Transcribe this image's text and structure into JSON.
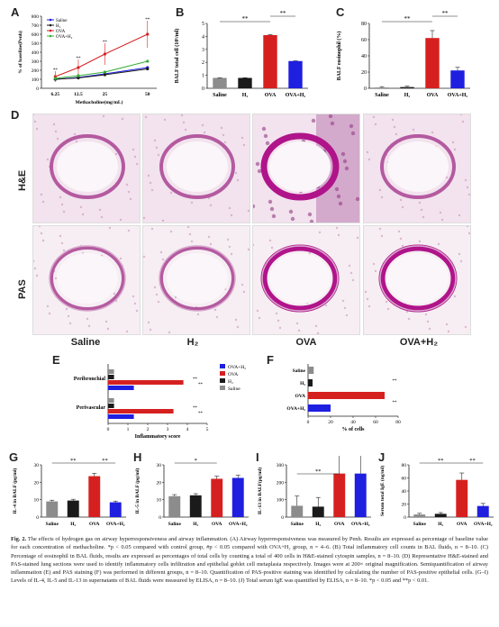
{
  "panels": {
    "A": {
      "label": "A",
      "ylabel": "% of baseline(Penh)",
      "xlabel": "Methacholine(mg/mL)",
      "yticks": [
        "0",
        "100",
        "200",
        "300",
        "400",
        "500",
        "600",
        "700",
        "800"
      ],
      "xticks": [
        "6.25",
        "12.5",
        "25",
        "50"
      ],
      "stars": [
        "**",
        "**",
        "**",
        "**"
      ]
    },
    "B": {
      "label": "B",
      "ylabel": "BALF total cell (10⁵/ml)",
      "yticks": [
        "0",
        "1",
        "2",
        "3",
        "4",
        "5"
      ],
      "categories": [
        "Saline",
        "H₂",
        "OVA",
        "OVA+H₂"
      ],
      "sig": [
        "**",
        "**"
      ]
    },
    "C": {
      "label": "C",
      "ylabel": "BALF eosinophil (%)",
      "yticks": [
        "0",
        "20",
        "40",
        "60",
        "80"
      ],
      "categories": [
        "Saline",
        "H₂",
        "OVA",
        "OVA+H₂"
      ],
      "sig": [
        "**",
        "**"
      ]
    },
    "D": {
      "label": "D",
      "rows": [
        "H&E",
        "PAS"
      ],
      "cols": [
        "Saline",
        "H₂",
        "OVA",
        "OVA+H₂"
      ]
    },
    "E": {
      "label": "E",
      "xlabel": "Inflammatory score",
      "groups": [
        "Peribronchial",
        "Perivascular"
      ],
      "xticks": [
        "0",
        "1",
        "2",
        "3",
        "4",
        "5"
      ],
      "legend": [
        "OVA+H₂",
        "OVA",
        "H₂",
        "Saline"
      ],
      "stars": [
        "**",
        "**",
        "**",
        "**"
      ]
    },
    "F": {
      "label": "F",
      "xlabel": "% of cells",
      "categories": [
        "Saline",
        "H₂",
        "OVA",
        "OVA+H₂"
      ],
      "xticks": [
        "0",
        "20",
        "40",
        "60",
        "80"
      ],
      "stars": [
        "**",
        "**"
      ]
    },
    "G": {
      "label": "G",
      "ylabel": "IL-4 in BALF (pg/ml)",
      "yticks": [
        "0",
        "10",
        "20",
        "30"
      ],
      "categories": [
        "Saline",
        "H₂",
        "OVA",
        "OVA+H₂"
      ],
      "sig": [
        "**",
        "**"
      ]
    },
    "H": {
      "label": "H",
      "ylabel": "IL-5 in BALF (pg/ml)",
      "yticks": [
        "0",
        "10",
        "20",
        "30"
      ],
      "categories": [
        "Saline",
        "H₂",
        "OVA",
        "OVA+H₂"
      ],
      "sig": [
        "*"
      ]
    },
    "I": {
      "label": "I",
      "ylabel": "IL-13 in BALF(pg/ml)",
      "yticks": [
        "0",
        "100",
        "200",
        "300"
      ],
      "categories": [
        "Saline",
        "H₂",
        "OVA",
        "OVA+H₂"
      ],
      "sig": [
        "**"
      ]
    },
    "J": {
      "label": "J",
      "ylabel": "Serum total IgE (ng/ml)",
      "yticks": [
        "0",
        "20",
        "40",
        "60",
        "80"
      ],
      "categories": [
        "Saline",
        "H₂",
        "OVA",
        "OVA+H₂"
      ],
      "sig": [
        "**",
        "**"
      ]
    }
  },
  "colors": {
    "saline": "#8c8c8c",
    "h2": "#1a1a1a",
    "ova": "#d62020",
    "ovah2": "#1f1fe0",
    "greenline": "#38b038"
  },
  "caption": {
    "title": "Fig. 2.",
    "text": "The effects of hydrogen gas on airway hyperresponsiveness and airway inflammation. (A) Airway hyperresponsiveness was measured by Penh. Results are expressed as percentage of baseline value for each concentration of methacholine. *p < 0.05 compared with control group, #p < 0.05 compared with OVA+H₂ group, n = 4–6. (B) Total inflammatory cell counts in BAL fluids, n = 8–10. (C) Percentage of eosinophil in BAL fluids, results are expressed as percentages of total cells by counting a total of 400 cells in H&E-stained cytospin samples, n = 8–10. (D) Representative H&E-stained and PAS-stained lung sections were used to identify inflammatory cells infiltration and epithelial goblet cell metaplasia respectively. Images were at 200× original magnification. Semiquantification of airway inflammation (E) and PAS staining (F) was performed in different groups, n = 8–10. Quantification of PAS-positive staining was identified by calculating the number of PAS-positive epithelial cells. (G–I) Levels of IL-4, IL-5 and IL-13 in supernatants of BAL fluids were measured by ELISA, n = 8–10. (J) Total serum IgE was quantified by ELISA, n = 8–10. *p < 0.05 and **p < 0.01."
  },
  "chart_data": [
    {
      "panel": "A",
      "type": "line",
      "x": [
        6.25,
        12.5,
        25,
        50
      ],
      "series": [
        {
          "name": "Saline",
          "values": [
            100,
            120,
            160,
            230
          ]
        },
        {
          "name": "H₂",
          "values": [
            100,
            115,
            150,
            215
          ]
        },
        {
          "name": "OVA",
          "values": [
            130,
            230,
            380,
            600
          ]
        },
        {
          "name": "OVA+H₂",
          "values": [
            110,
            140,
            180,
            300
          ]
        }
      ],
      "ylim": [
        0,
        800
      ]
    },
    {
      "panel": "B",
      "type": "bar",
      "categories": [
        "Saline",
        "H₂",
        "OVA",
        "OVA+H₂"
      ],
      "values": [
        0.8,
        0.8,
        4.1,
        2.1
      ],
      "ylim": [
        0,
        5
      ]
    },
    {
      "panel": "C",
      "type": "bar",
      "categories": [
        "Saline",
        "H₂",
        "OVA",
        "OVA+H₂"
      ],
      "values": [
        1,
        1.5,
        62,
        22
      ],
      "ylim": [
        0,
        80
      ]
    },
    {
      "panel": "E",
      "type": "bar",
      "orientation": "horizontal",
      "categories": [
        "Peribronchial",
        "Perivascular"
      ],
      "series": [
        {
          "name": "OVA+H₂",
          "values": [
            1.3,
            1.3
          ]
        },
        {
          "name": "OVA",
          "values": [
            3.8,
            3.3
          ]
        },
        {
          "name": "H₂",
          "values": [
            0.3,
            0.3
          ]
        },
        {
          "name": "Saline",
          "values": [
            0.3,
            0.3
          ]
        }
      ],
      "xlim": [
        0,
        5
      ]
    },
    {
      "panel": "F",
      "type": "bar",
      "orientation": "horizontal",
      "categories": [
        "Saline",
        "H₂",
        "OVA",
        "OVA+H₂"
      ],
      "values": [
        5,
        4,
        68,
        20
      ],
      "xlim": [
        0,
        80
      ]
    },
    {
      "panel": "G",
      "type": "bar",
      "categories": [
        "Saline",
        "H₂",
        "OVA",
        "OVA+H₂"
      ],
      "values": [
        9,
        9.5,
        23.5,
        8.5
      ],
      "ylim": [
        0,
        30
      ]
    },
    {
      "panel": "H",
      "type": "bar",
      "categories": [
        "Saline",
        "H₂",
        "OVA",
        "OVA+H₂"
      ],
      "values": [
        12,
        12.5,
        22,
        22.5
      ],
      "ylim": [
        0,
        30
      ]
    },
    {
      "panel": "I",
      "type": "bar",
      "categories": [
        "Saline",
        "H₂",
        "OVA",
        "OVA+H₂"
      ],
      "values": [
        65,
        60,
        250,
        250
      ],
      "ylim": [
        0,
        300
      ]
    },
    {
      "panel": "J",
      "type": "bar",
      "categories": [
        "Saline",
        "H₂",
        "OVA",
        "OVA+H₂"
      ],
      "values": [
        4,
        5,
        57,
        17
      ],
      "ylim": [
        0,
        80
      ]
    }
  ]
}
